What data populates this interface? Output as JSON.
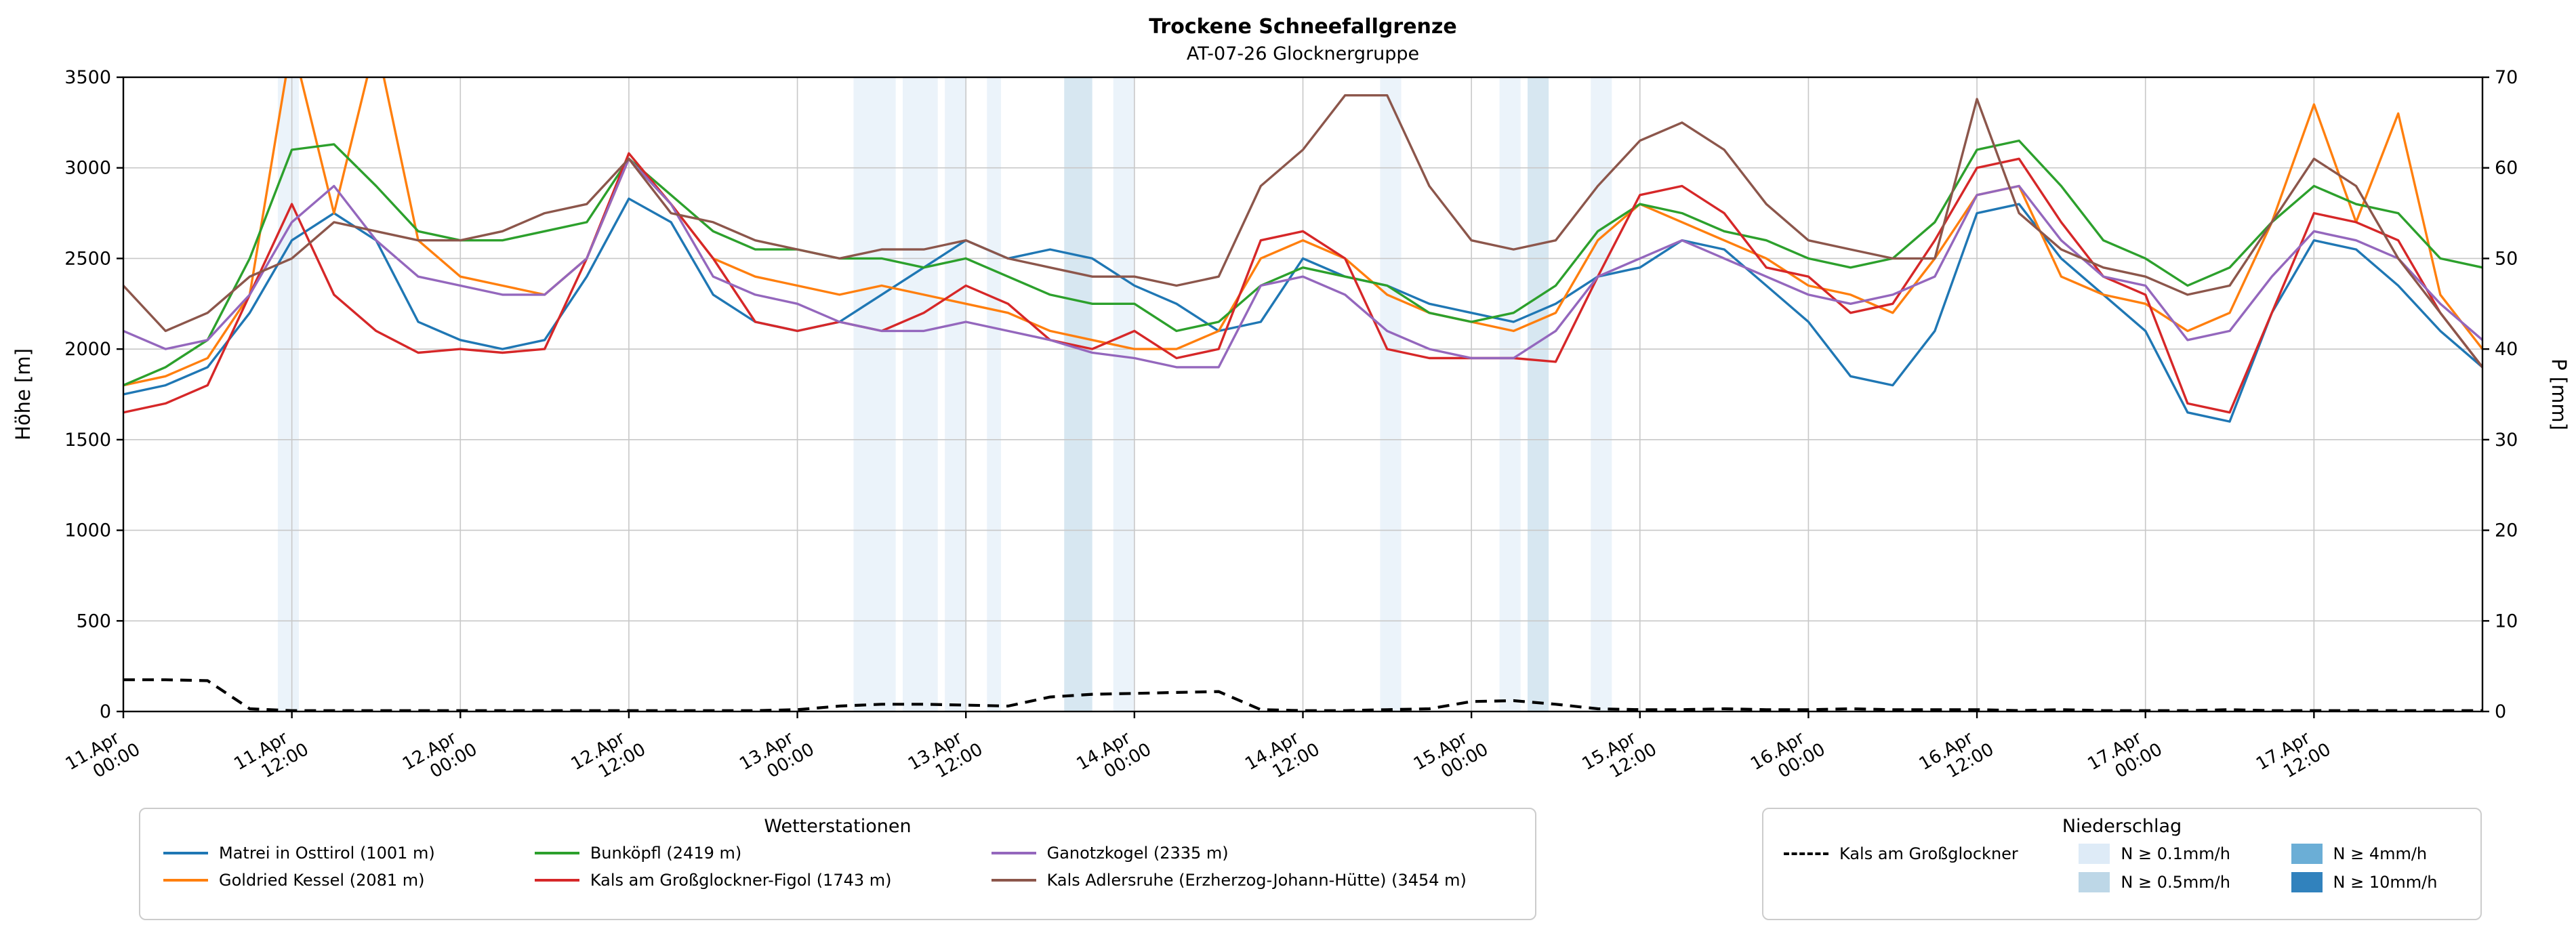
{
  "title": "Trockene Schneefallgrenze",
  "subtitle": "AT-07-26 Glocknergruppe",
  "chart_data": {
    "type": "line",
    "title": "Trockene Schneefallgrenze",
    "subtitle": "AT-07-26 Glocknergruppe",
    "x_unit": "hours since 11.Apr 00:00",
    "x_range": [
      0,
      168
    ],
    "x_step": 3,
    "grid": true,
    "y_left": {
      "label": "Höhe [m]",
      "range": [
        0,
        3500
      ],
      "ticks": [
        0,
        500,
        1000,
        1500,
        2000,
        2500,
        3000,
        3500
      ]
    },
    "y_right": {
      "label": "P [mm]",
      "range": [
        0,
        70
      ],
      "ticks": [
        0,
        10,
        20,
        30,
        40,
        50,
        60,
        70
      ]
    },
    "x_ticks": [
      {
        "t": 0,
        "line1": "11.Apr",
        "line2": "00:00"
      },
      {
        "t": 12,
        "line1": "11.Apr",
        "line2": "12:00"
      },
      {
        "t": 24,
        "line1": "12.Apr",
        "line2": "00:00"
      },
      {
        "t": 36,
        "line1": "12.Apr",
        "line2": "12:00"
      },
      {
        "t": 48,
        "line1": "13.Apr",
        "line2": "00:00"
      },
      {
        "t": 60,
        "line1": "13.Apr",
        "line2": "12:00"
      },
      {
        "t": 72,
        "line1": "14.Apr",
        "line2": "00:00"
      },
      {
        "t": 84,
        "line1": "14.Apr",
        "line2": "12:00"
      },
      {
        "t": 96,
        "line1": "15.Apr",
        "line2": "00:00"
      },
      {
        "t": 108,
        "line1": "15.Apr",
        "line2": "12:00"
      },
      {
        "t": 120,
        "line1": "16.Apr",
        "line2": "00:00"
      },
      {
        "t": 132,
        "line1": "16.Apr",
        "line2": "12:00"
      },
      {
        "t": 144,
        "line1": "17.Apr",
        "line2": "00:00"
      },
      {
        "t": 156,
        "line1": "17.Apr",
        "line2": "12:00"
      }
    ],
    "series": [
      {
        "name": "Matrei in Osttirol (1001 m)",
        "color": "#1f77b4",
        "axis": "left",
        "values": [
          1750,
          1800,
          1900,
          2200,
          2600,
          2750,
          2600,
          2150,
          2050,
          2000,
          2050,
          2400,
          2830,
          2700,
          2300,
          2150,
          2100,
          2150,
          2300,
          2450,
          2600,
          2500,
          2550,
          2500,
          2350,
          2250,
          2100,
          2150,
          2500,
          2400,
          2350,
          2250,
          2200,
          2150,
          2250,
          2400,
          2450,
          2600,
          2550,
          2350,
          2150,
          1850,
          1800,
          2100,
          2750,
          2800,
          2500,
          2300,
          2100,
          1650,
          1600,
          2200,
          2600,
          2550,
          2350,
          2100,
          1900
        ]
      },
      {
        "name": "Goldried Kessel (2081 m)",
        "color": "#ff7f0e",
        "axis": "left",
        "values": [
          1800,
          1850,
          1950,
          2300,
          3700,
          2750,
          3700,
          2600,
          2400,
          2350,
          2300,
          2500,
          3050,
          2800,
          2500,
          2400,
          2350,
          2300,
          2350,
          2300,
          2250,
          2200,
          2100,
          2050,
          2000,
          2000,
          2100,
          2500,
          2600,
          2500,
          2300,
          2200,
          2150,
          2100,
          2200,
          2600,
          2800,
          2700,
          2600,
          2500,
          2350,
          2300,
          2200,
          2500,
          2850,
          2900,
          2400,
          2300,
          2250,
          2100,
          2200,
          2700,
          3350,
          2700,
          3300,
          2300,
          2000
        ]
      },
      {
        "name": "Bunköpfl (2419 m)",
        "color": "#2ca02c",
        "axis": "left",
        "values": [
          1800,
          1900,
          2050,
          2500,
          3100,
          3130,
          2900,
          2650,
          2600,
          2600,
          2650,
          2700,
          3050,
          2850,
          2650,
          2550,
          2550,
          2500,
          2500,
          2450,
          2500,
          2400,
          2300,
          2250,
          2250,
          2100,
          2150,
          2350,
          2450,
          2400,
          2350,
          2200,
          2150,
          2200,
          2350,
          2650,
          2800,
          2750,
          2650,
          2600,
          2500,
          2450,
          2500,
          2700,
          3100,
          3150,
          2900,
          2600,
          2500,
          2350,
          2450,
          2700,
          2900,
          2800,
          2750,
          2500,
          2450
        ]
      },
      {
        "name": "Kals am Großglockner-Figol (1743 m)",
        "color": "#d62728",
        "axis": "left",
        "values": [
          1650,
          1700,
          1800,
          2300,
          2800,
          2300,
          2100,
          1980,
          2000,
          1980,
          2000,
          2500,
          3080,
          2800,
          2500,
          2150,
          2100,
          2150,
          2100,
          2200,
          2350,
          2250,
          2050,
          2000,
          2100,
          1950,
          2000,
          2600,
          2650,
          2500,
          2000,
          1950,
          1950,
          1950,
          1930,
          2400,
          2850,
          2900,
          2750,
          2450,
          2400,
          2200,
          2250,
          2600,
          3000,
          3050,
          2700,
          2400,
          2300,
          1700,
          1650,
          2200,
          2750,
          2700,
          2600,
          2200,
          1900
        ]
      },
      {
        "name": "Ganotzkogel (2335 m)",
        "color": "#9467bd",
        "axis": "left",
        "values": [
          2100,
          2000,
          2050,
          2300,
          2700,
          2900,
          2600,
          2400,
          2350,
          2300,
          2300,
          2500,
          3050,
          2800,
          2400,
          2300,
          2250,
          2150,
          2100,
          2100,
          2150,
          2100,
          2050,
          1980,
          1950,
          1900,
          1900,
          2350,
          2400,
          2300,
          2100,
          2000,
          1950,
          1950,
          2100,
          2400,
          2500,
          2600,
          2500,
          2400,
          2300,
          2250,
          2300,
          2400,
          2850,
          2900,
          2600,
          2400,
          2350,
          2050,
          2100,
          2400,
          2650,
          2600,
          2500,
          2250,
          2050
        ]
      },
      {
        "name": "Kals Adlersruhe (Erzherzog-Johann-Hütte) (3454 m)",
        "color": "#8c564b",
        "axis": "left",
        "values": [
          2350,
          2100,
          2200,
          2400,
          2500,
          2700,
          2650,
          2600,
          2600,
          2650,
          2750,
          2800,
          3050,
          2750,
          2700,
          2600,
          2550,
          2500,
          2550,
          2550,
          2600,
          2500,
          2450,
          2400,
          2400,
          2350,
          2400,
          2900,
          3100,
          3400,
          3400,
          2900,
          2600,
          2550,
          2600,
          2900,
          3150,
          3250,
          3100,
          2800,
          2600,
          2550,
          2500,
          2500,
          3380,
          2750,
          2550,
          2450,
          2400,
          2300,
          2350,
          2700,
          3050,
          2900,
          2500,
          2200,
          1900
        ]
      }
    ],
    "precip_line": {
      "name": "Kals am Großglockner",
      "color": "#000000",
      "style": "dashed",
      "axis": "right",
      "values": [
        3.5,
        3.5,
        3.4,
        0.3,
        0.1,
        0.1,
        0.1,
        0.1,
        0.1,
        0.1,
        0.1,
        0.1,
        0.1,
        0.1,
        0.1,
        0.1,
        0.2,
        0.6,
        0.8,
        0.8,
        0.7,
        0.6,
        1.6,
        1.9,
        2.0,
        2.1,
        2.2,
        0.2,
        0.1,
        0.1,
        0.2,
        0.3,
        1.1,
        1.2,
        0.8,
        0.3,
        0.2,
        0.2,
        0.3,
        0.2,
        0.2,
        0.3,
        0.2,
        0.2,
        0.2,
        0.1,
        0.2,
        0.1,
        0.1,
        0.1,
        0.2,
        0.1,
        0.1,
        0.1,
        0.1,
        0.1,
        0.1
      ]
    },
    "precip_bands": [
      {
        "start": 11,
        "end": 12.5,
        "level": "0.1"
      },
      {
        "start": 52,
        "end": 55,
        "level": "0.1"
      },
      {
        "start": 55.5,
        "end": 58,
        "level": "0.1"
      },
      {
        "start": 58.5,
        "end": 60,
        "level": "0.1"
      },
      {
        "start": 61.5,
        "end": 62.5,
        "level": "0.1"
      },
      {
        "start": 67,
        "end": 69,
        "level": "0.5"
      },
      {
        "start": 70.5,
        "end": 72,
        "level": "0.1"
      },
      {
        "start": 89.5,
        "end": 91,
        "level": "0.1"
      },
      {
        "start": 98,
        "end": 99.5,
        "level": "0.1"
      },
      {
        "start": 100,
        "end": 101.5,
        "level": "0.5"
      },
      {
        "start": 104.5,
        "end": 106,
        "level": "0.1"
      }
    ],
    "band_colors": {
      "0.1": "#deebf7",
      "0.5": "#bdd7e7",
      "4": "#6baed6",
      "10": "#3182bd"
    }
  },
  "legends": {
    "stations": {
      "title": "Wetterstationen"
    },
    "precip": {
      "title": "Niederschlag",
      "line_label": "Kals am Großglockner",
      "band_items": [
        {
          "label": "N ≥ 0.1mm/h",
          "color": "#deebf7"
        },
        {
          "label": "N ≥ 0.5mm/h",
          "color": "#bdd7e7"
        },
        {
          "label": "N ≥ 4mm/h",
          "color": "#6baed6"
        },
        {
          "label": "N ≥ 10mm/h",
          "color": "#3182bd"
        }
      ]
    }
  }
}
